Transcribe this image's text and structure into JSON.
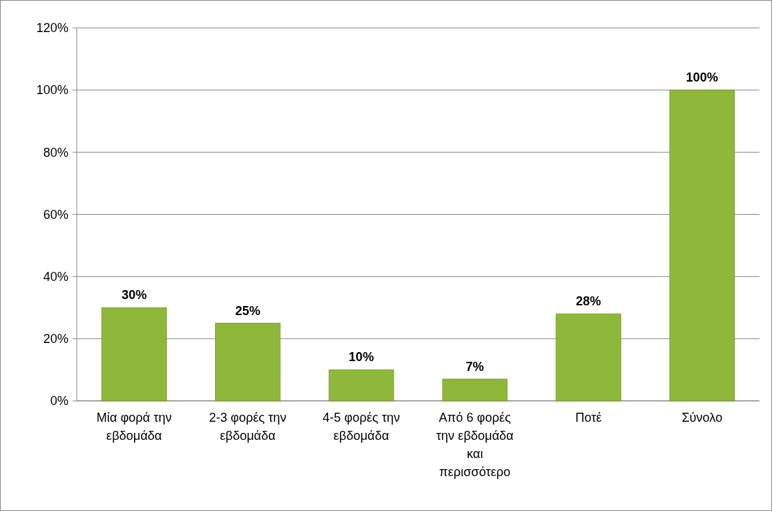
{
  "chart_data": {
    "type": "bar",
    "categories": [
      "Μία φορά την εβδομάδα",
      "2-3 φορές την εβδομάδα",
      "4-5 φορές την εβδομάδα",
      "Από 6 φορές την εβδομάδα και περισσότερο",
      "Ποτέ",
      "Σύνολο"
    ],
    "values": [
      30,
      25,
      10,
      7,
      28,
      100
    ],
    "color": "#8fb83a",
    "ylim": [
      0,
      120
    ],
    "yticks": [
      {
        "value": 0,
        "label": "0%"
      },
      {
        "value": 20,
        "label": "20%"
      },
      {
        "value": 40,
        "label": "40%"
      },
      {
        "value": 60,
        "label": "60%"
      },
      {
        "value": 80,
        "label": "80%"
      },
      {
        "value": 100,
        "label": "100%"
      },
      {
        "value": 120,
        "label": "120%"
      }
    ],
    "grid": "y",
    "value_labels": [
      "30%",
      "25%",
      "10%",
      "7%",
      "28%",
      "100%"
    ]
  }
}
